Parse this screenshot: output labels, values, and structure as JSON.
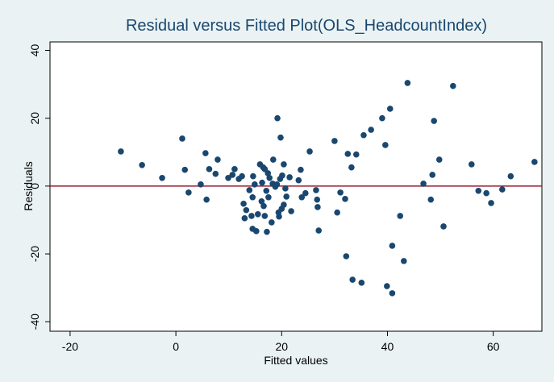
{
  "chart_data": {
    "type": "scatter",
    "title": "Residual versus Fitted Plot(OLS_HeadcountIndex)",
    "x_label": "Fitted values",
    "y_label": "Residuals",
    "xlim": [
      -23.8,
      69.2
    ],
    "ylim": [
      -42.8,
      42.5
    ],
    "xticks": [
      -20,
      0,
      20,
      40,
      60
    ],
    "yticks": [
      -40,
      -20,
      0,
      20,
      40
    ],
    "hline": 0,
    "hline_color": "#9b1c31",
    "series": [
      {
        "color": "#1a476f",
        "x": [
          -10.4,
          -6.4,
          -2.6,
          1.2,
          1.7,
          2.4,
          4.7,
          5.6,
          5.8,
          6.3,
          7.5,
          7.9,
          9.9,
          10.7,
          11.1,
          11.9,
          12.5,
          12.8,
          13.0,
          13.3,
          13.9,
          14.3,
          14.5,
          14.5,
          14.6,
          14.9,
          15.2,
          15.5,
          15.9,
          16.2,
          16.3,
          16.5,
          16.6,
          16.8,
          16.8,
          17.1,
          17.2,
          17.4,
          17.5,
          17.7,
          18.1,
          18.3,
          18.4,
          18.8,
          19.1,
          19.2,
          19.4,
          19.5,
          19.7,
          19.8,
          20.0,
          20.1,
          20.4,
          20.4,
          20.7,
          20.9,
          21.5,
          21.8,
          23.2,
          23.6,
          23.8,
          24.5,
          25.3,
          26.5,
          26.7,
          26.8,
          27.0,
          30.0,
          30.5,
          31.1,
          32.0,
          32.2,
          32.5,
          33.2,
          33.4,
          34.1,
          35.1,
          35.5,
          36.9,
          39.0,
          39.6,
          39.9,
          40.5,
          40.9,
          40.9,
          42.4,
          43.1,
          43.8,
          46.8,
          48.2,
          48.5,
          48.8,
          49.8,
          50.6,
          52.4,
          55.9,
          57.2,
          58.7,
          59.6,
          61.7,
          63.3,
          67.8
        ],
        "values": [
          10.2,
          6.2,
          2.4,
          14.0,
          4.8,
          -1.9,
          0.5,
          9.7,
          -4.0,
          5.0,
          3.6,
          7.8,
          2.4,
          3.3,
          5.0,
          2.1,
          2.9,
          -5.2,
          -9.5,
          -7.1,
          -1.2,
          -8.8,
          -12.6,
          -3.3,
          2.9,
          0.5,
          -13.3,
          -8.3,
          6.4,
          -4.5,
          1.0,
          5.5,
          -5.9,
          -8.8,
          5.0,
          -1.4,
          -13.5,
          3.8,
          -3.3,
          2.4,
          -10.7,
          0.7,
          7.8,
          -0.2,
          0.5,
          20.0,
          -7.8,
          -9.0,
          2.1,
          14.3,
          -6.7,
          3.1,
          6.4,
          -5.5,
          -0.7,
          -3.1,
          2.6,
          -7.4,
          1.7,
          4.8,
          -3.3,
          -2.1,
          10.2,
          -1.2,
          -4.0,
          -6.2,
          -13.1,
          13.3,
          -7.8,
          -1.9,
          -3.8,
          -20.7,
          9.5,
          5.5,
          -27.6,
          9.3,
          -28.5,
          15.0,
          16.6,
          20.0,
          12.1,
          -29.5,
          22.8,
          -17.6,
          -31.6,
          -8.8,
          -22.1,
          30.4,
          0.7,
          -4.0,
          3.3,
          19.2,
          7.8,
          -11.9,
          29.5,
          6.4,
          -1.4,
          -2.1,
          -5.0,
          -1.0,
          2.9,
          7.1
        ]
      }
    ]
  }
}
